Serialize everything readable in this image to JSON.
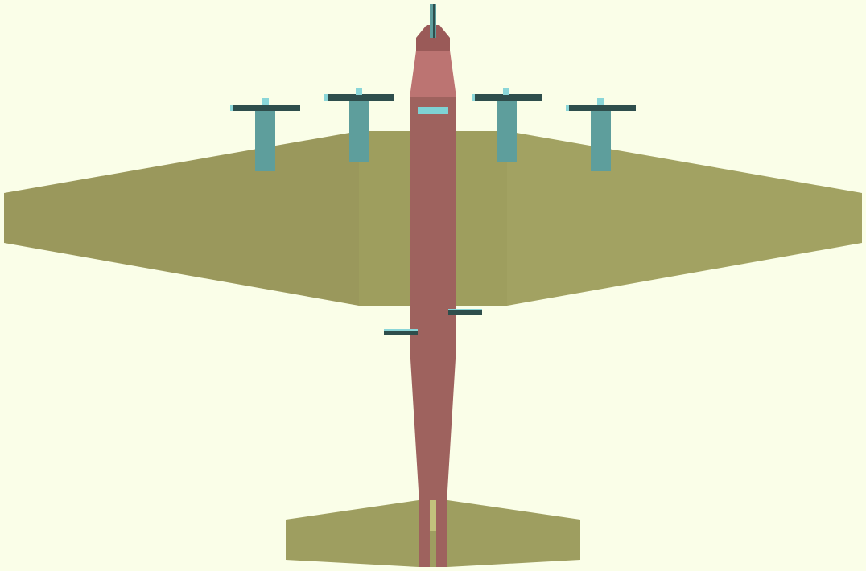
{
  "scene": {
    "subject": "aircraft-top-view",
    "engine_count": 4
  },
  "colors": {
    "background": "#fafee8",
    "wing_left": "#9a985c",
    "wing_right": "#a2a262",
    "wing_center": "#9e9e5e",
    "fuselage": "#9e625e",
    "nose": "#bc7472",
    "nose_tip": "#9a5a58",
    "canopy": "#7ed2d4",
    "nacelle": "#5e9e9c",
    "prop_blade": "#2e4e4c",
    "prop_highlight": "#8ad6d8",
    "tail": "#9e9e60",
    "tail_stripe": "#c2c27c"
  }
}
